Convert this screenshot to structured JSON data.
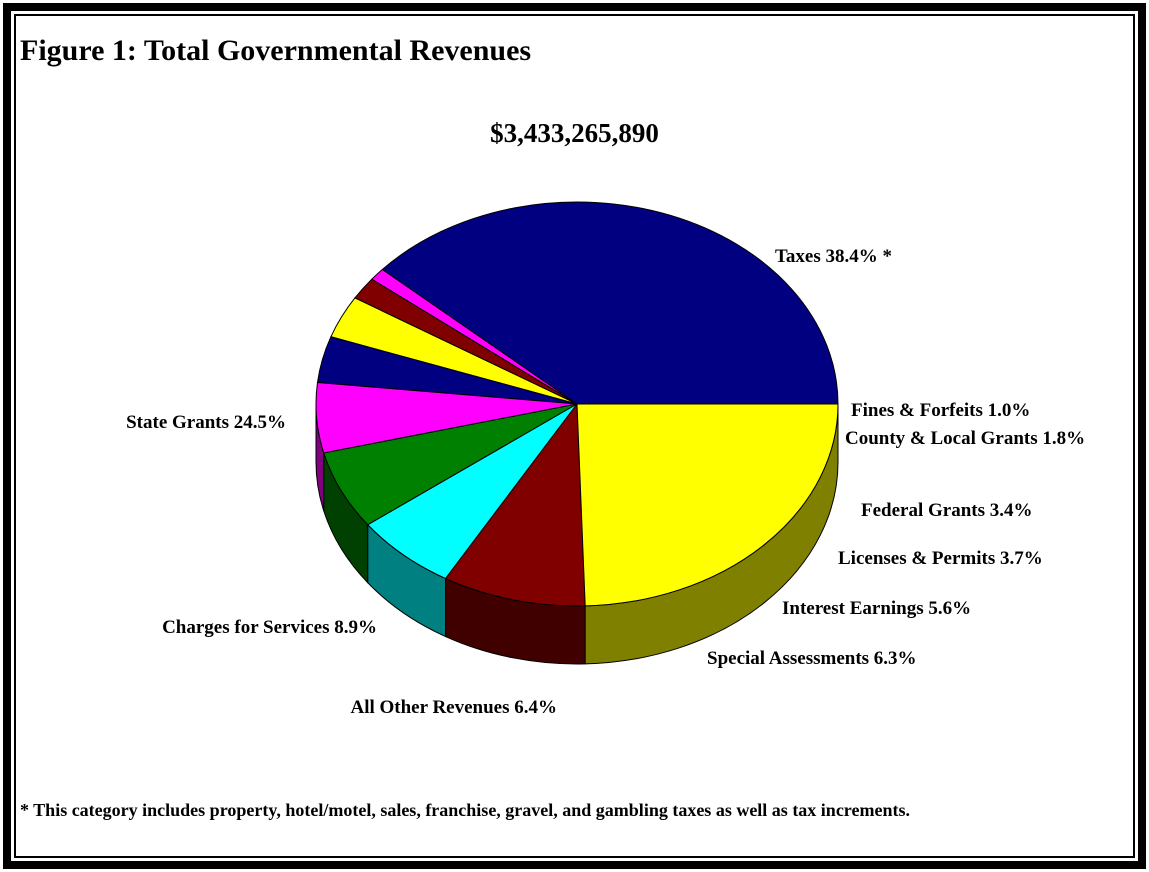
{
  "figure": {
    "title": "Figure 1: Total Governmental Revenues",
    "total": "$3,433,265,890",
    "footnote": "* This category includes property, hotel/motel, sales, franchise, gravel, and gambling taxes as well as tax increments."
  },
  "chart_data": {
    "type": "pie",
    "title": "Figure 1: Total Governmental Revenues",
    "subtitle": "$3,433,265,890",
    "three_d": true,
    "slices": [
      {
        "label": "Taxes 38.4% *",
        "name": "Taxes",
        "value": 38.4,
        "color": "#000080",
        "side_color": "#000040"
      },
      {
        "label": "Fines & Forfeits  1.0%",
        "name": "Fines & Forfeits",
        "value": 1.0,
        "color": "#ff00ff",
        "side_color": "#800080"
      },
      {
        "label": "County & Local Grants 1.8%",
        "name": "County & Local Grants",
        "value": 1.8,
        "color": "#800000",
        "side_color": "#400000"
      },
      {
        "label": "Federal Grants  3.4%",
        "name": "Federal Grants",
        "value": 3.4,
        "color": "#ffff00",
        "side_color": "#808000"
      },
      {
        "label": "Licenses & Permits 3.7%",
        "name": "Licenses & Permits",
        "value": 3.7,
        "color": "#000080",
        "side_color": "#000040"
      },
      {
        "label": "Interest Earnings  5.6%",
        "name": "Interest Earnings",
        "value": 5.6,
        "color": "#ff00ff",
        "side_color": "#800080"
      },
      {
        "label": "Special Assessments  6.3%",
        "name": "Special Assessments",
        "value": 6.3,
        "color": "#008000",
        "side_color": "#004000"
      },
      {
        "label": "All Other Revenues  6.4%",
        "name": "All Other Revenues",
        "value": 6.4,
        "color": "#00ffff",
        "side_color": "#008080"
      },
      {
        "label": "Charges for Services 8.9%",
        "name": "Charges for Services",
        "value": 8.9,
        "color": "#800000",
        "side_color": "#400000"
      },
      {
        "label": "State Grants   24.5%",
        "name": "State Grants",
        "value": 24.5,
        "color": "#ffff00",
        "side_color": "#808000"
      }
    ]
  }
}
